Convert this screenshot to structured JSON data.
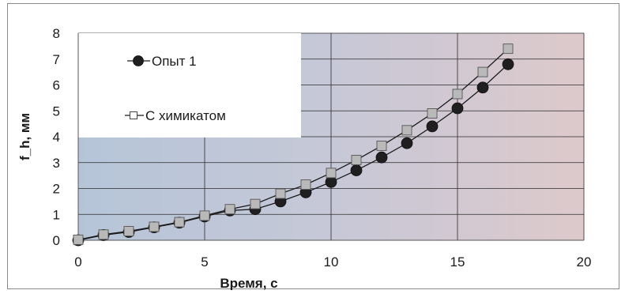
{
  "chart_data": {
    "type": "line",
    "xlabel": "Время, с",
    "ylabel": "f_h, мм",
    "xlim": [
      0,
      20
    ],
    "ylim": [
      0,
      8
    ],
    "xticks": [
      0,
      5,
      10,
      15,
      20
    ],
    "yticks": [
      0,
      1,
      2,
      3,
      4,
      5,
      6,
      7,
      8
    ],
    "grid": true,
    "legend_position": "top-left",
    "series": [
      {
        "name": "Опыт 1",
        "marker": "circle",
        "color": "#1a1a1a",
        "marker_color": "#1f1f1f",
        "x": [
          0,
          1,
          2,
          3,
          4,
          5,
          6,
          7,
          8,
          9,
          10,
          11,
          12,
          13,
          14,
          15,
          16,
          17
        ],
        "y": [
          0,
          0.2,
          0.32,
          0.5,
          0.68,
          0.92,
          1.15,
          1.2,
          1.5,
          1.85,
          2.25,
          2.7,
          3.2,
          3.75,
          4.4,
          5.1,
          5.9,
          6.8
        ]
      },
      {
        "name": "С химикатом",
        "marker": "square",
        "color": "#1a1a1a",
        "marker_color": "#b9b9b9",
        "x": [
          0,
          1,
          2,
          3,
          4,
          5,
          6,
          7,
          8,
          9,
          10,
          11,
          12,
          13,
          14,
          15,
          16,
          17
        ],
        "y": [
          0.02,
          0.22,
          0.35,
          0.52,
          0.7,
          0.95,
          1.2,
          1.4,
          1.8,
          2.15,
          2.6,
          3.1,
          3.65,
          4.25,
          4.9,
          5.65,
          6.5,
          7.4
        ]
      }
    ]
  }
}
